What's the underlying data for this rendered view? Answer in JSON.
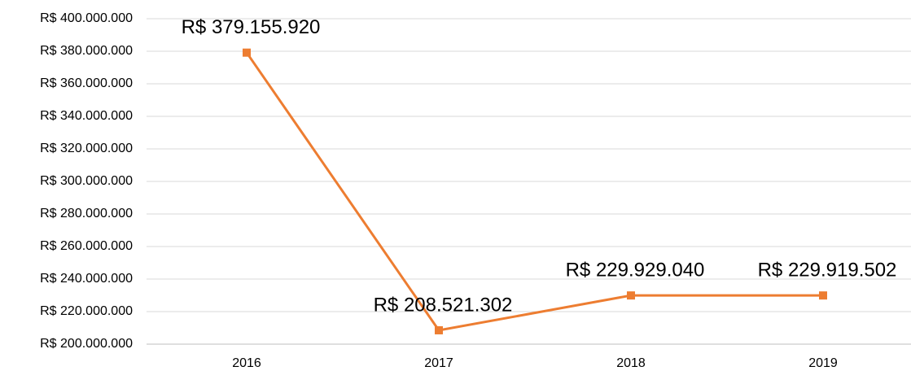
{
  "chart_data": {
    "type": "line",
    "categories": [
      "2016",
      "2017",
      "2018",
      "2019"
    ],
    "series": [
      {
        "color": "#ed7d31",
        "values": [
          379155920,
          208521302,
          229929040,
          229919502
        ],
        "value_labels": [
          "R$ 379.155.920",
          "R$ 208.521.302",
          "R$ 229.929.040",
          "R$ 229.919.502"
        ]
      }
    ],
    "ylim": [
      200000000,
      400000000
    ],
    "yticks": [
      {
        "value": 200000000,
        "label": "R$ 200.000.000"
      },
      {
        "value": 220000000,
        "label": "R$ 220.000.000"
      },
      {
        "value": 240000000,
        "label": "R$ 240.000.000"
      },
      {
        "value": 260000000,
        "label": "R$ 260.000.000"
      },
      {
        "value": 280000000,
        "label": "R$ 280.000.000"
      },
      {
        "value": 300000000,
        "label": "R$ 300.000.000"
      },
      {
        "value": 320000000,
        "label": "R$ 320.000.000"
      },
      {
        "value": 340000000,
        "label": "R$ 340.000.000"
      },
      {
        "value": 360000000,
        "label": "R$ 360.000.000"
      },
      {
        "value": 380000000,
        "label": "R$ 380.000.000"
      },
      {
        "value": 400000000,
        "label": "R$ 400.000.000"
      }
    ],
    "grid": true
  }
}
